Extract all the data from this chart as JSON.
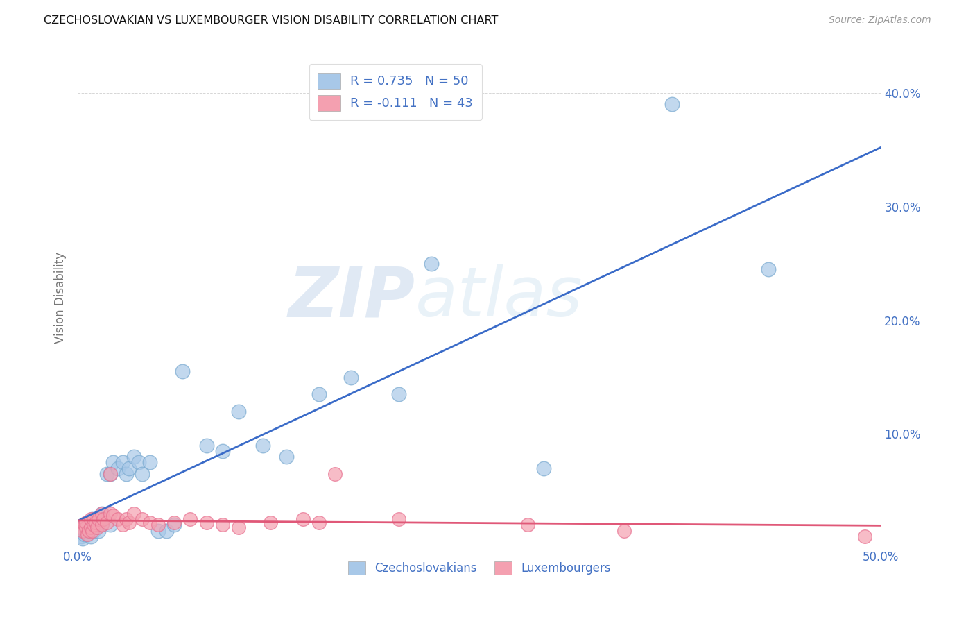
{
  "title": "CZECHOSLOVAKIAN VS LUXEMBOURGER VISION DISABILITY CORRELATION CHART",
  "source": "Source: ZipAtlas.com",
  "ylabel": "Vision Disability",
  "xlim": [
    0.0,
    0.5
  ],
  "ylim": [
    0.0,
    0.44
  ],
  "xticks": [
    0.0,
    0.1,
    0.2,
    0.3,
    0.4,
    0.5
  ],
  "xticklabels": [
    "0.0%",
    "",
    "",
    "",
    "",
    "50.0%"
  ],
  "yticks": [
    0.0,
    0.1,
    0.2,
    0.3,
    0.4
  ],
  "yticklabels_right": [
    "",
    "10.0%",
    "20.0%",
    "30.0%",
    "40.0%"
  ],
  "blue_color": "#A8C8E8",
  "pink_color": "#F4A0B0",
  "blue_edge_color": "#7AAAD0",
  "pink_edge_color": "#E87090",
  "blue_line_color": "#3A6BC8",
  "pink_line_color": "#E05878",
  "R_blue": 0.735,
  "N_blue": 50,
  "R_pink": -0.111,
  "N_pink": 43,
  "legend_label_blue": "Czechoslovakians",
  "legend_label_pink": "Luxembourgers",
  "watermark_zip": "ZIP",
  "watermark_atlas": "atlas",
  "background_color": "#ffffff",
  "grid_color": "#cccccc",
  "tick_color": "#4472C4",
  "czecho_x": [
    0.002,
    0.003,
    0.004,
    0.004,
    0.005,
    0.005,
    0.006,
    0.007,
    0.007,
    0.008,
    0.008,
    0.009,
    0.01,
    0.01,
    0.011,
    0.012,
    0.013,
    0.013,
    0.014,
    0.015,
    0.015,
    0.016,
    0.018,
    0.02,
    0.02,
    0.022,
    0.025,
    0.028,
    0.03,
    0.032,
    0.035,
    0.038,
    0.04,
    0.045,
    0.05,
    0.055,
    0.06,
    0.065,
    0.08,
    0.09,
    0.1,
    0.115,
    0.13,
    0.15,
    0.17,
    0.2,
    0.22,
    0.29,
    0.37,
    0.43
  ],
  "czecho_y": [
    0.01,
    0.008,
    0.012,
    0.015,
    0.018,
    0.02,
    0.012,
    0.015,
    0.022,
    0.01,
    0.018,
    0.025,
    0.015,
    0.022,
    0.018,
    0.02,
    0.025,
    0.015,
    0.02,
    0.022,
    0.03,
    0.025,
    0.065,
    0.02,
    0.065,
    0.075,
    0.07,
    0.075,
    0.065,
    0.07,
    0.08,
    0.075,
    0.065,
    0.075,
    0.015,
    0.015,
    0.02,
    0.155,
    0.09,
    0.085,
    0.12,
    0.09,
    0.08,
    0.135,
    0.15,
    0.135,
    0.25,
    0.07,
    0.39,
    0.245
  ],
  "luxem_x": [
    0.002,
    0.003,
    0.004,
    0.005,
    0.005,
    0.006,
    0.007,
    0.008,
    0.008,
    0.009,
    0.01,
    0.01,
    0.011,
    0.012,
    0.013,
    0.015,
    0.015,
    0.016,
    0.018,
    0.02,
    0.02,
    0.022,
    0.025,
    0.028,
    0.03,
    0.032,
    0.035,
    0.04,
    0.045,
    0.05,
    0.06,
    0.07,
    0.08,
    0.09,
    0.1,
    0.12,
    0.14,
    0.15,
    0.16,
    0.2,
    0.28,
    0.34,
    0.49
  ],
  "luxem_y": [
    0.018,
    0.015,
    0.02,
    0.018,
    0.022,
    0.012,
    0.015,
    0.018,
    0.025,
    0.015,
    0.02,
    0.025,
    0.022,
    0.018,
    0.025,
    0.02,
    0.03,
    0.025,
    0.022,
    0.03,
    0.065,
    0.028,
    0.025,
    0.02,
    0.025,
    0.022,
    0.03,
    0.025,
    0.022,
    0.02,
    0.022,
    0.025,
    0.022,
    0.02,
    0.018,
    0.022,
    0.025,
    0.022,
    0.065,
    0.025,
    0.02,
    0.015,
    0.01
  ]
}
